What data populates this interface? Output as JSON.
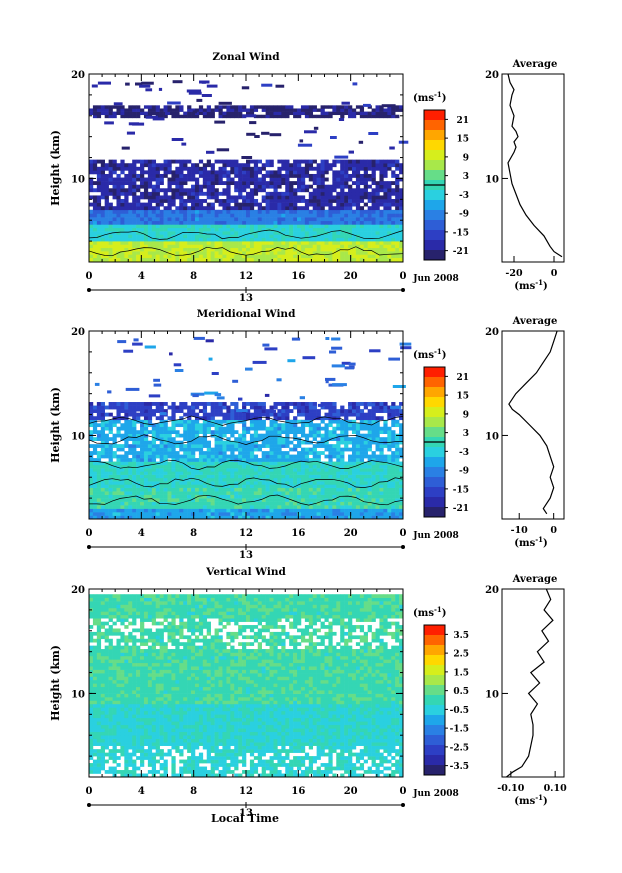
{
  "figure": {
    "xlabel": "Local Time"
  },
  "chart_data": [
    {
      "type": "heatmap",
      "title": "Zonal Wind",
      "ylabel": "Height (km)",
      "ylim": [
        2,
        20
      ],
      "yticks": [
        "10",
        "20"
      ],
      "xlim": [
        0,
        24
      ],
      "xticks": [
        "0",
        "4",
        "8",
        "12",
        "16",
        "20",
        "0"
      ],
      "date_label": "13",
      "date_marker": "Jun 2008",
      "colorbar": {
        "unit": "(ms",
        "unit_exp": "-1",
        "unit_close": ")",
        "labels": [
          "21",
          "15",
          "9",
          "3",
          "-3",
          "-9",
          "-15",
          "-21"
        ],
        "colors": [
          "#ff1f00",
          "#ff6400",
          "#ffa600",
          "#ffd800",
          "#d6ee1c",
          "#a8e84a",
          "#66dd88",
          "#34d6b4",
          "#2ad0e0",
          "#1ea6ea",
          "#2a80e4",
          "#2e5ed6",
          "#2d3fc4",
          "#2a2aa8",
          "#27226c"
        ]
      },
      "profile": [
        [
          20,
          4
        ],
        [
          8,
          5
        ],
        [
          16,
          10
        ],
        [
          12,
          12
        ],
        [
          18,
          13
        ],
        [
          30,
          15
        ],
        [
          28,
          16
        ],
        [
          28,
          17
        ],
        [
          14,
          18
        ],
        [
          18,
          19
        ],
        [
          24,
          19.5
        ],
        [
          28,
          20
        ]
      ],
      "layers": [
        {
          "y0": 0.5,
          "y1": 4.0,
          "value": 7,
          "desc": "surface band"
        },
        {
          "y0": 4.0,
          "y1": 5.6,
          "value": -2
        },
        {
          "y0": 5.6,
          "y1": 7.0,
          "value": -9
        },
        {
          "y0": 7.0,
          "y1": 11.8,
          "value": -17
        },
        {
          "y0": 15.8,
          "y1": 17.0,
          "value": -19
        }
      ],
      "average": {
        "title": "Average",
        "xlabel": "(ms",
        "xlabel_exp": "-1",
        "xlabel_close": ")",
        "xticks": [
          "-20",
          "0"
        ],
        "xlim": [
          -26,
          5
        ],
        "yticks": [
          "10",
          "20"
        ],
        "points": [
          [
            4,
            2.5
          ],
          [
            0,
            3
          ],
          [
            -2,
            3.5
          ],
          [
            -5,
            4.5
          ],
          [
            -10,
            5.5
          ],
          [
            -14,
            6.5
          ],
          [
            -17,
            7.5
          ],
          [
            -19,
            8.5
          ],
          [
            -21,
            9.5
          ],
          [
            -22,
            10.5
          ],
          [
            -23,
            11.5
          ],
          [
            -20,
            12.5
          ],
          [
            -19,
            13
          ],
          [
            -20,
            13.5
          ],
          [
            -18,
            14
          ],
          [
            -19,
            14.5
          ],
          [
            -21,
            15
          ],
          [
            -20,
            16
          ],
          [
            -22,
            17
          ],
          [
            -21,
            18
          ],
          [
            -20,
            18.5
          ],
          [
            -22,
            19.2
          ],
          [
            -23,
            20
          ]
        ]
      }
    },
    {
      "type": "heatmap",
      "title": "Meridional Wind",
      "ylabel": "Height (km)",
      "ylim": [
        2,
        20
      ],
      "yticks": [
        "10",
        "20"
      ],
      "xlim": [
        0,
        24
      ],
      "xticks": [
        "0",
        "4",
        "8",
        "12",
        "16",
        "20",
        "0"
      ],
      "date_label": "13",
      "date_marker": "Jun 2008",
      "colorbar": {
        "unit": "(ms",
        "unit_exp": "-1",
        "unit_close": ")",
        "labels": [
          "21",
          "15",
          "9",
          "3",
          "-3",
          "-9",
          "-15",
          "-21"
        ],
        "colors": [
          "#ff1f00",
          "#ff6400",
          "#ffa600",
          "#ffd800",
          "#d6ee1c",
          "#a8e84a",
          "#66dd88",
          "#34d6b4",
          "#2ad0e0",
          "#1ea6ea",
          "#2a80e4",
          "#2e5ed6",
          "#2d3fc4",
          "#2a2aa8",
          "#27226c"
        ]
      },
      "layers": [
        {
          "y0": 1.0,
          "y1": 3.0,
          "value": -6
        },
        {
          "y0": 3.0,
          "y1": 5.0,
          "value": 0
        },
        {
          "y0": 5.0,
          "y1": 7.5,
          "value": -1
        },
        {
          "y0": 7.5,
          "y1": 11.5,
          "value": -5
        },
        {
          "y0": 11.5,
          "y1": 13.2,
          "value": -14
        }
      ],
      "average": {
        "title": "Average",
        "xlabel": "(ms",
        "xlabel_exp": "-1",
        "xlabel_close": ")",
        "xticks": [
          "-10",
          "0"
        ],
        "xlim": [
          -15,
          3
        ],
        "yticks": [
          "10",
          "20"
        ],
        "points": [
          [
            -2,
            2.5
          ],
          [
            -3,
            3
          ],
          [
            -1,
            4
          ],
          [
            0,
            5
          ],
          [
            -1,
            6
          ],
          [
            0,
            7
          ],
          [
            -1,
            8
          ],
          [
            -2,
            9
          ],
          [
            -4,
            10
          ],
          [
            -7,
            11
          ],
          [
            -10,
            12
          ],
          [
            -12,
            12.5
          ],
          [
            -13,
            13
          ],
          [
            -11,
            14
          ],
          [
            -8,
            15
          ],
          [
            -5,
            16
          ],
          [
            -3,
            17
          ],
          [
            -1,
            18
          ],
          [
            0,
            19
          ],
          [
            1,
            20
          ]
        ]
      }
    },
    {
      "type": "heatmap",
      "title": "Vertical Wind",
      "ylabel": "Height (km)",
      "ylim": [
        2,
        20
      ],
      "yticks": [
        "10",
        "20"
      ],
      "xlim": [
        0,
        24
      ],
      "xticks": [
        "0",
        "4",
        "8",
        "12",
        "16",
        "20",
        "0"
      ],
      "date_label": "13",
      "date_marker": "Jun 2008",
      "colorbar": {
        "unit": "(ms",
        "unit_exp": "-1",
        "unit_close": ")",
        "labels": [
          "3.5",
          "2.5",
          "1.5",
          "0.5",
          "-0.5",
          "-1.5",
          "-2.5",
          "-3.5"
        ],
        "colors": [
          "#ff1f00",
          "#ff6400",
          "#ffa600",
          "#ffd800",
          "#d6ee1c",
          "#a8e84a",
          "#66dd88",
          "#34d6b4",
          "#2ad0e0",
          "#1ea6ea",
          "#2a80e4",
          "#2e5ed6",
          "#2d3fc4",
          "#2a2aa8",
          "#27226c"
        ]
      },
      "layers": [
        {
          "y0": 1.0,
          "y1": 9.0,
          "value": -0.3
        },
        {
          "y0": 9.0,
          "y1": 19.5,
          "value": 0.1
        }
      ],
      "average": {
        "title": "Average",
        "xlabel": "(ms",
        "xlabel_exp": "-1",
        "xlabel_close": ")",
        "xticks": [
          "-0.10",
          "0.10"
        ],
        "xlim": [
          -0.14,
          0.14
        ],
        "yticks": [
          "10",
          "20"
        ],
        "points": [
          [
            -0.12,
            2
          ],
          [
            -0.09,
            2.5
          ],
          [
            -0.05,
            3
          ],
          [
            -0.02,
            4
          ],
          [
            -0.01,
            5
          ],
          [
            0.0,
            6
          ],
          [
            0.0,
            7
          ],
          [
            -0.01,
            8
          ],
          [
            0.02,
            9
          ],
          [
            -0.02,
            10
          ],
          [
            0.03,
            11
          ],
          [
            -0.01,
            12
          ],
          [
            0.05,
            13
          ],
          [
            0.02,
            14
          ],
          [
            0.07,
            15
          ],
          [
            0.04,
            16
          ],
          [
            0.09,
            17
          ],
          [
            0.05,
            18
          ],
          [
            0.08,
            19
          ],
          [
            0.06,
            20
          ]
        ]
      }
    }
  ]
}
